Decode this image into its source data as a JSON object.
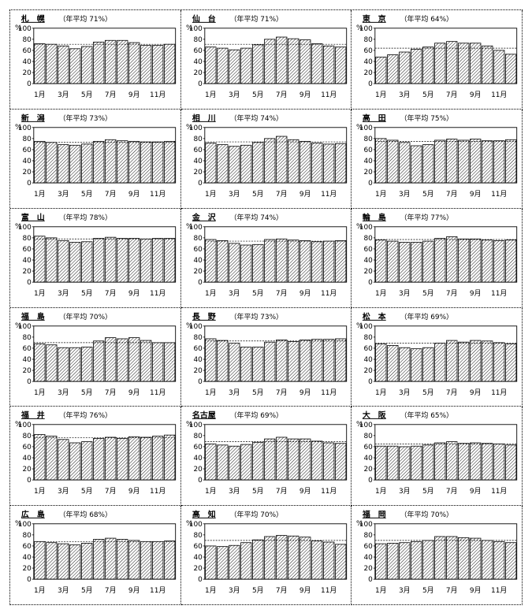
{
  "chart_data": [
    {
      "type": "bar",
      "title_city": "札　幌",
      "title_avg": "（年平均 71%）",
      "series": [
        {
          "values": [
            72,
            71,
            68,
            63,
            67,
            75,
            78,
            78,
            74,
            69,
            69,
            71
          ]
        }
      ],
      "ylim": [
        0,
        100
      ],
      "reference": 71
    },
    {
      "type": "bar",
      "title_city": "仙　台",
      "title_avg": "（年平均 71%）",
      "series": [
        {
          "values": [
            66,
            64,
            61,
            64,
            70,
            80,
            84,
            81,
            79,
            72,
            68,
            66
          ]
        }
      ],
      "ylim": [
        0,
        100
      ],
      "reference": 71
    },
    {
      "type": "bar",
      "title_city": "東　京",
      "title_avg": "（年平均 64%）",
      "series": [
        {
          "values": [
            48,
            52,
            57,
            62,
            66,
            73,
            76,
            73,
            73,
            68,
            60,
            53
          ]
        }
      ],
      "ylim": [
        0,
        100
      ],
      "reference": 64
    },
    {
      "type": "bar",
      "title_city": "新　潟",
      "title_avg": "（年平均 73%）",
      "series": [
        {
          "values": [
            75,
            73,
            69,
            68,
            70,
            75,
            78,
            76,
            75,
            74,
            74,
            75
          ]
        }
      ],
      "ylim": [
        0,
        100
      ],
      "reference": 73
    },
    {
      "type": "bar",
      "title_city": "相　川",
      "title_avg": "（年平均 74%）",
      "series": [
        {
          "values": [
            72,
            69,
            66,
            68,
            73,
            80,
            84,
            78,
            75,
            72,
            70,
            71
          ]
        }
      ],
      "ylim": [
        0,
        100
      ],
      "reference": 74
    },
    {
      "type": "bar",
      "title_city": "高　田",
      "title_avg": "（年平均 75%）",
      "series": [
        {
          "values": [
            80,
            77,
            73,
            67,
            69,
            77,
            79,
            77,
            79,
            76,
            76,
            78
          ]
        }
      ],
      "ylim": [
        0,
        100
      ],
      "reference": 75
    },
    {
      "type": "bar",
      "title_city": "富　山",
      "title_avg": "（年平均 78%）",
      "series": [
        {
          "values": [
            83,
            80,
            75,
            72,
            73,
            79,
            81,
            79,
            79,
            78,
            79,
            79
          ]
        }
      ],
      "ylim": [
        0,
        100
      ],
      "reference": 78
    },
    {
      "type": "bar",
      "title_city": "金　沢",
      "title_avg": "（年平均 74%）",
      "series": [
        {
          "values": [
            77,
            75,
            70,
            67,
            68,
            77,
            78,
            76,
            75,
            73,
            74,
            75
          ]
        }
      ],
      "ylim": [
        0,
        100
      ],
      "reference": 74
    },
    {
      "type": "bar",
      "title_city": "輪　島",
      "title_avg": "（年平均 77%）",
      "series": [
        {
          "values": [
            76,
            74,
            72,
            72,
            74,
            79,
            82,
            78,
            78,
            76,
            75,
            76
          ]
        }
      ],
      "ylim": [
        0,
        100
      ],
      "reference": 77
    },
    {
      "type": "bar",
      "title_city": "福　島",
      "title_avg": "（年平均 70%）",
      "series": [
        {
          "values": [
            68,
            66,
            61,
            61,
            62,
            73,
            79,
            77,
            79,
            74,
            70,
            70
          ]
        }
      ],
      "ylim": [
        0,
        100
      ],
      "reference": 70
    },
    {
      "type": "bar",
      "title_city": "長　野",
      "title_avg": "（年平均 73%）",
      "series": [
        {
          "values": [
            77,
            74,
            69,
            62,
            62,
            71,
            75,
            72,
            75,
            76,
            76,
            77
          ]
        }
      ],
      "ylim": [
        0,
        100
      ],
      "reference": 73
    },
    {
      "type": "bar",
      "title_city": "松　本",
      "title_avg": "（年平均 69%）",
      "series": [
        {
          "values": [
            68,
            65,
            61,
            59,
            61,
            69,
            74,
            71,
            74,
            73,
            70,
            68
          ]
        }
      ],
      "ylim": [
        0,
        100
      ],
      "reference": 69
    },
    {
      "type": "bar",
      "title_city": "福　井",
      "title_avg": "（年平均 76%）",
      "series": [
        {
          "values": [
            82,
            79,
            73,
            67,
            69,
            75,
            77,
            75,
            78,
            77,
            79,
            81
          ]
        }
      ],
      "ylim": [
        0,
        100
      ],
      "reference": 76
    },
    {
      "type": "bar",
      "title_city": "名古屋",
      "title_avg": "（年平均 69%）",
      "series": [
        {
          "values": [
            65,
            63,
            61,
            64,
            68,
            74,
            77,
            74,
            74,
            70,
            67,
            66
          ]
        }
      ],
      "ylim": [
        0,
        100
      ],
      "reference": 69
    },
    {
      "type": "bar",
      "title_city": "大　阪",
      "title_avg": "（年平均 65%）",
      "series": [
        {
          "values": [
            61,
            61,
            60,
            61,
            63,
            67,
            69,
            66,
            67,
            66,
            65,
            63
          ]
        }
      ],
      "ylim": [
        0,
        100
      ],
      "reference": 65
    },
    {
      "type": "bar",
      "title_city": "広　島",
      "title_avg": "（年平均 68%）",
      "series": [
        {
          "values": [
            68,
            66,
            64,
            62,
            65,
            72,
            74,
            72,
            70,
            68,
            68,
            69
          ]
        }
      ],
      "ylim": [
        0,
        100
      ],
      "reference": 68
    },
    {
      "type": "bar",
      "title_city": "高　知",
      "title_avg": "（年平均 70%）",
      "series": [
        {
          "values": [
            60,
            59,
            61,
            66,
            71,
            77,
            79,
            78,
            76,
            69,
            67,
            63
          ]
        }
      ],
      "ylim": [
        0,
        100
      ],
      "reference": 70
    },
    {
      "type": "bar",
      "title_city": "福　岡",
      "title_avg": "（年平均 70%）",
      "series": [
        {
          "values": [
            64,
            65,
            66,
            68,
            70,
            77,
            77,
            75,
            74,
            70,
            68,
            66
          ]
        }
      ],
      "ylim": [
        0,
        100
      ],
      "reference": 70
    }
  ],
  "axis": {
    "y_unit": "%",
    "y_ticks": [
      "0",
      "20",
      "40",
      "60",
      "80",
      "100"
    ],
    "x_tick_labels": [
      "1月",
      "3月",
      "5月",
      "7月",
      "9月",
      "11月"
    ]
  }
}
